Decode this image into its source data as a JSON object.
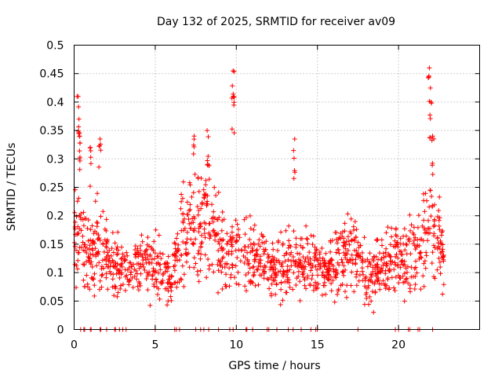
{
  "chart_data": {
    "type": "scatter",
    "title": "Day 132 of 2025, SRMTID for receiver av09",
    "xlabel": "GPS time / hours",
    "ylabel": "SRMTID / TECUs",
    "xlim": [
      0,
      25
    ],
    "ylim": [
      0,
      0.5
    ],
    "x_ticks": [
      0,
      5,
      10,
      15,
      20
    ],
    "x_tick_labels": [
      "0",
      "5",
      "10",
      "15",
      "20"
    ],
    "y_ticks": [
      0,
      0.05,
      0.1,
      0.15,
      0.2,
      0.25,
      0.3,
      0.35,
      0.4,
      0.45,
      0.5
    ],
    "y_tick_labels": [
      "0",
      "0.05",
      "0.1",
      "0.15",
      "0.2",
      "0.25",
      "0.3",
      "0.35",
      "0.4",
      "0.45",
      "0.5"
    ],
    "grid": true,
    "marker": "+",
    "series": [
      {
        "name": "SRMTID",
        "color": "#ff0000",
        "envelope_hours": [
          0.0,
          0.3,
          0.6,
          1.0,
          1.5,
          2.0,
          2.5,
          3.0,
          3.5,
          4.0,
          4.5,
          5.0,
          5.5,
          6.0,
          6.5,
          7.0,
          7.5,
          8.0,
          8.5,
          9.0,
          9.5,
          10.0,
          10.5,
          11.0,
          11.5,
          12.0,
          12.5,
          13.0,
          13.5,
          14.0,
          14.5,
          15.0,
          15.5,
          16.0,
          16.5,
          17.0,
          17.5,
          18.0,
          18.5,
          19.0,
          19.5,
          20.0,
          20.5,
          21.0,
          21.5,
          22.0,
          22.5,
          22.8
        ],
        "envelope_median": [
          0.16,
          0.16,
          0.14,
          0.15,
          0.15,
          0.13,
          0.11,
          0.11,
          0.1,
          0.11,
          0.12,
          0.12,
          0.1,
          0.09,
          0.15,
          0.17,
          0.18,
          0.19,
          0.19,
          0.14,
          0.12,
          0.14,
          0.14,
          0.13,
          0.12,
          0.11,
          0.1,
          0.11,
          0.13,
          0.12,
          0.12,
          0.11,
          0.1,
          0.11,
          0.13,
          0.14,
          0.12,
          0.09,
          0.1,
          0.11,
          0.12,
          0.13,
          0.12,
          0.14,
          0.17,
          0.18,
          0.15,
          0.13
        ],
        "envelope_spread": [
          0.05,
          0.06,
          0.05,
          0.05,
          0.05,
          0.04,
          0.04,
          0.03,
          0.03,
          0.04,
          0.04,
          0.04,
          0.03,
          0.03,
          0.05,
          0.06,
          0.06,
          0.06,
          0.06,
          0.05,
          0.04,
          0.04,
          0.04,
          0.04,
          0.04,
          0.03,
          0.03,
          0.04,
          0.05,
          0.04,
          0.04,
          0.04,
          0.03,
          0.04,
          0.04,
          0.05,
          0.04,
          0.04,
          0.04,
          0.04,
          0.04,
          0.05,
          0.04,
          0.05,
          0.06,
          0.06,
          0.05,
          0.04
        ],
        "peaks": [
          {
            "x": 0.25,
            "y": 0.41
          },
          {
            "x": 0.3,
            "y": 0.37
          },
          {
            "x": 0.35,
            "y": 0.34
          },
          {
            "x": 1.0,
            "y": 0.32
          },
          {
            "x": 1.6,
            "y": 0.335
          },
          {
            "x": 7.4,
            "y": 0.34
          },
          {
            "x": 8.2,
            "y": 0.35
          },
          {
            "x": 9.8,
            "y": 0.455
          },
          {
            "x": 9.8,
            "y": 0.41
          },
          {
            "x": 13.6,
            "y": 0.335
          },
          {
            "x": 21.9,
            "y": 0.46
          },
          {
            "x": 22.0,
            "y": 0.4
          },
          {
            "x": 22.1,
            "y": 0.34
          }
        ],
        "zero_points_hours": [
          0.4,
          0.6,
          0.65,
          1.0,
          1.05,
          1.6,
          1.65,
          2.0,
          2.5,
          2.55,
          2.8,
          3.0,
          3.2,
          5.0,
          6.2,
          6.3,
          6.5,
          7.5,
          7.8,
          8.0,
          8.3,
          8.9,
          9.6,
          9.8,
          10.6,
          10.65,
          11.0,
          11.9,
          12.0,
          12.5,
          13.2,
          13.5,
          14.0,
          14.6,
          14.9,
          15.0,
          17.5,
          19.8,
          20.0,
          20.6,
          20.7,
          21.2,
          21.3,
          22.1
        ]
      }
    ]
  }
}
